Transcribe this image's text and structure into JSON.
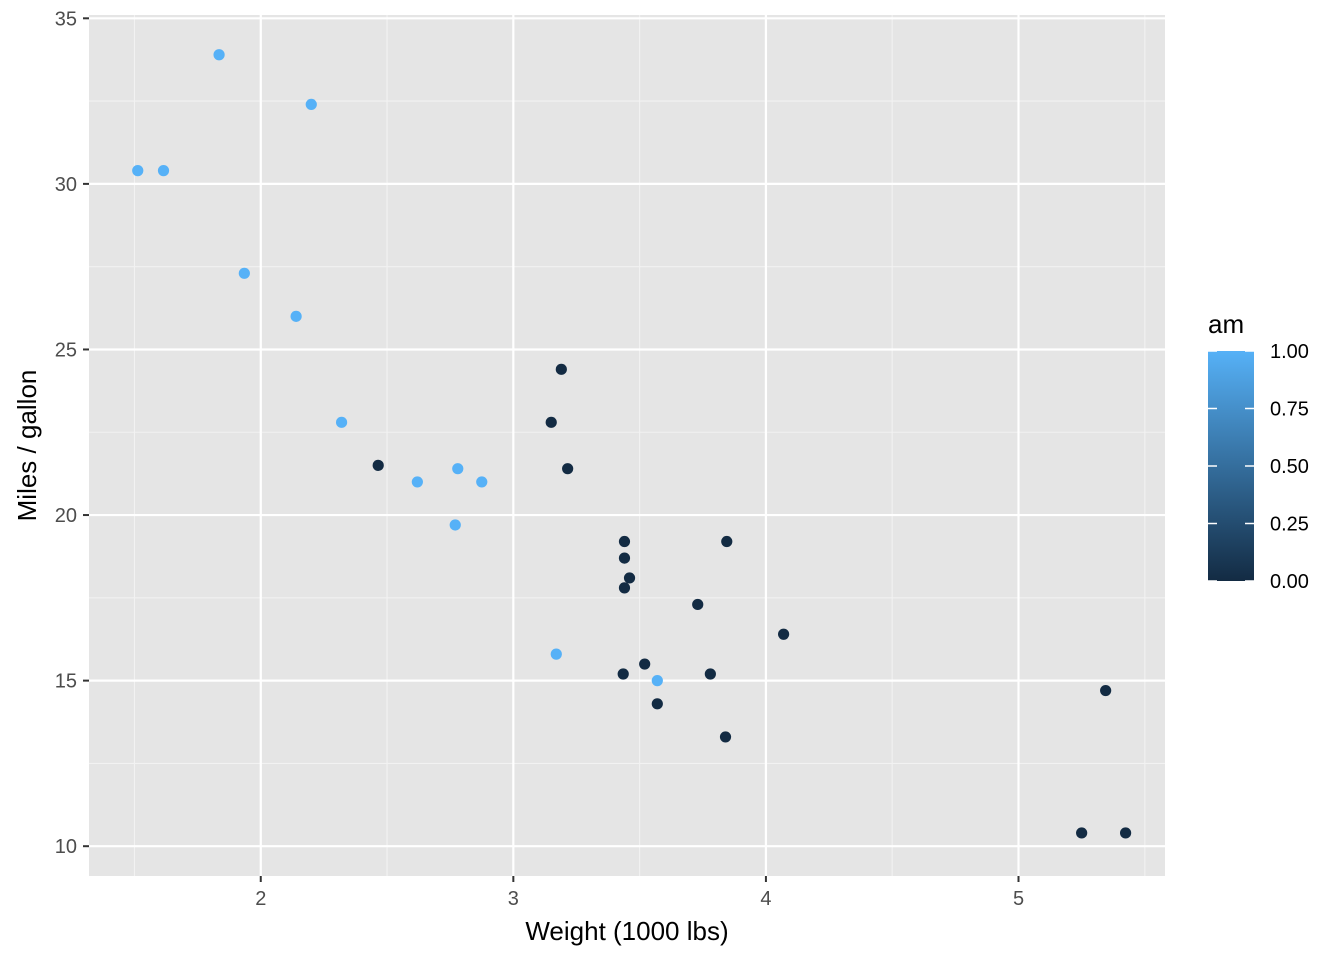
{
  "chart_data": {
    "type": "scatter",
    "title": "",
    "xlabel": "Weight (1000 lbs)",
    "ylabel": "Miles / gallon",
    "xlim": [
      1.32,
      5.58
    ],
    "ylim": [
      9.1,
      35.1
    ],
    "x_ticks": [
      2,
      3,
      4,
      5
    ],
    "x_tick_labels": [
      "2",
      "3",
      "4",
      "5"
    ],
    "y_ticks": [
      10,
      15,
      20,
      25,
      30,
      35
    ],
    "y_tick_labels": [
      "10",
      "15",
      "20",
      "25",
      "30",
      "35"
    ],
    "grid": true,
    "legend": {
      "title": "am",
      "placement": "right",
      "type": "colorbar",
      "ticks": [
        0,
        0.25,
        0.5,
        0.75,
        1
      ],
      "tick_labels": [
        "0.00",
        "0.25",
        "0.50",
        "0.75",
        "1.00"
      ],
      "color_low": "#132B43",
      "color_high": "#56B1F7"
    },
    "colors": {
      "panel_background": "#e5e5e5",
      "grid_major": "#ffffff",
      "grid_minor": "#f2f2f2",
      "low": "#132B43",
      "high": "#56B1F7"
    },
    "points": [
      {
        "x": 2.62,
        "y": 21.0,
        "am": 1
      },
      {
        "x": 2.875,
        "y": 21.0,
        "am": 1
      },
      {
        "x": 2.32,
        "y": 22.8,
        "am": 1
      },
      {
        "x": 3.215,
        "y": 21.4,
        "am": 0
      },
      {
        "x": 3.44,
        "y": 18.7,
        "am": 0
      },
      {
        "x": 3.46,
        "y": 18.1,
        "am": 0
      },
      {
        "x": 3.57,
        "y": 14.3,
        "am": 0
      },
      {
        "x": 3.19,
        "y": 24.4,
        "am": 0
      },
      {
        "x": 3.15,
        "y": 22.8,
        "am": 0
      },
      {
        "x": 3.44,
        "y": 19.2,
        "am": 0
      },
      {
        "x": 3.44,
        "y": 17.8,
        "am": 0
      },
      {
        "x": 4.07,
        "y": 16.4,
        "am": 0
      },
      {
        "x": 3.73,
        "y": 17.3,
        "am": 0
      },
      {
        "x": 3.78,
        "y": 15.2,
        "am": 0
      },
      {
        "x": 5.25,
        "y": 10.4,
        "am": 0
      },
      {
        "x": 5.424,
        "y": 10.4,
        "am": 0
      },
      {
        "x": 5.345,
        "y": 14.7,
        "am": 0
      },
      {
        "x": 2.2,
        "y": 32.4,
        "am": 1
      },
      {
        "x": 1.615,
        "y": 30.4,
        "am": 1
      },
      {
        "x": 1.835,
        "y": 33.9,
        "am": 1
      },
      {
        "x": 2.465,
        "y": 21.5,
        "am": 0
      },
      {
        "x": 3.52,
        "y": 15.5,
        "am": 0
      },
      {
        "x": 3.435,
        "y": 15.2,
        "am": 0
      },
      {
        "x": 3.84,
        "y": 13.3,
        "am": 0
      },
      {
        "x": 3.845,
        "y": 19.2,
        "am": 0
      },
      {
        "x": 1.935,
        "y": 27.3,
        "am": 1
      },
      {
        "x": 2.14,
        "y": 26.0,
        "am": 1
      },
      {
        "x": 1.513,
        "y": 30.4,
        "am": 1
      },
      {
        "x": 3.17,
        "y": 15.8,
        "am": 1
      },
      {
        "x": 2.77,
        "y": 19.7,
        "am": 1
      },
      {
        "x": 3.57,
        "y": 15.0,
        "am": 1
      },
      {
        "x": 2.78,
        "y": 21.4,
        "am": 1
      }
    ]
  }
}
